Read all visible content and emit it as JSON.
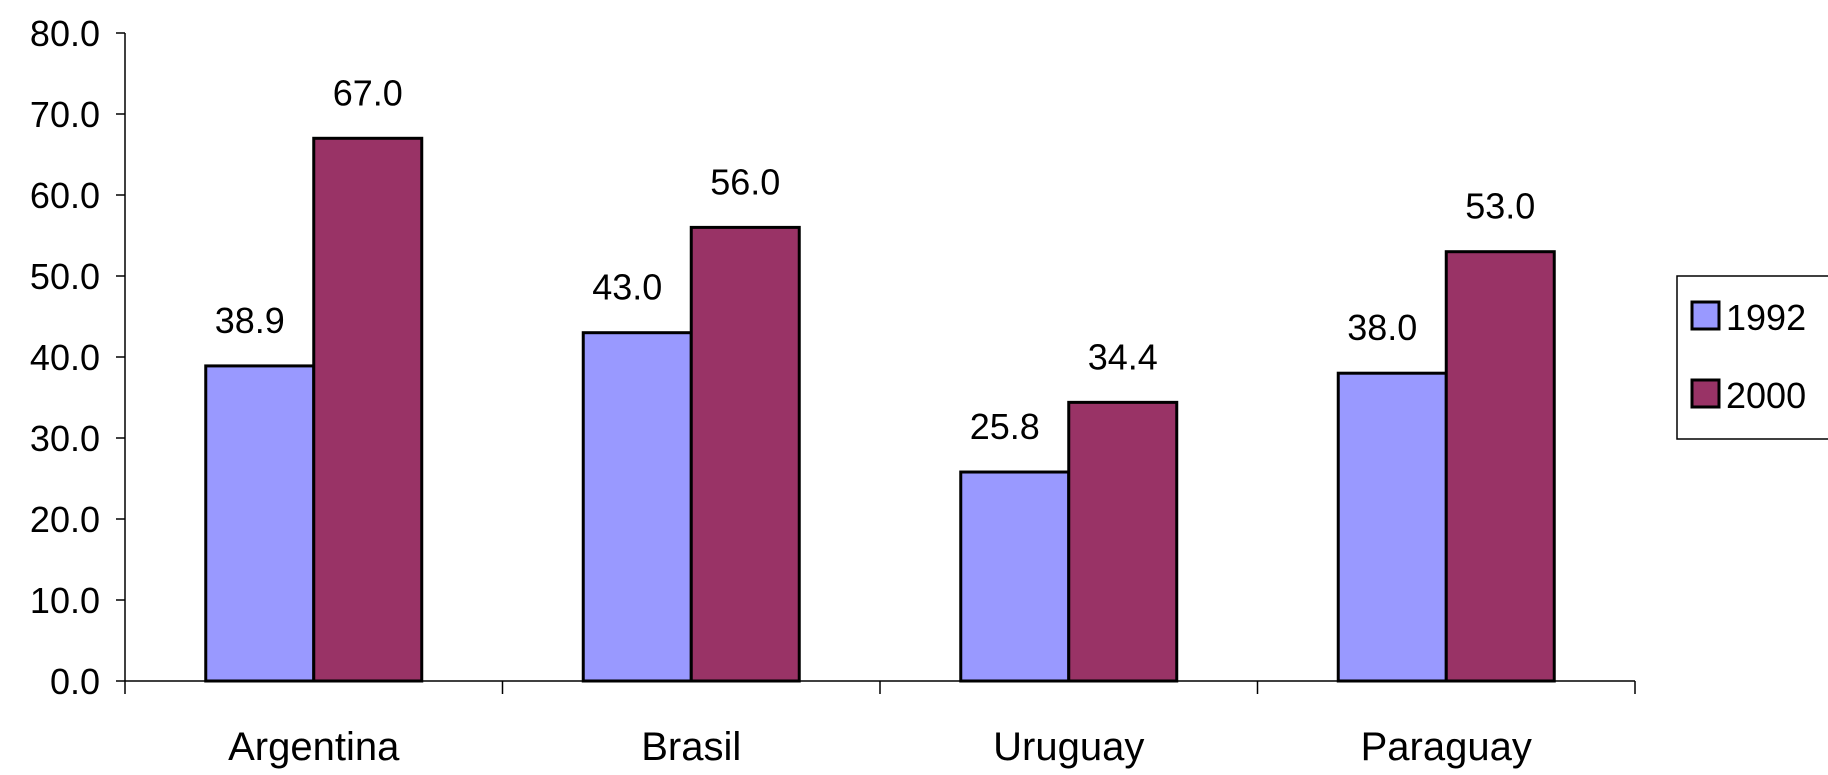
{
  "chart_data": {
    "type": "bar",
    "categories": [
      "Argentina",
      "Brasil",
      "Uruguay",
      "Paraguay"
    ],
    "series": [
      {
        "name": "1992",
        "values": [
          38.9,
          43.0,
          25.8,
          38.0
        ],
        "color": "#9999ff"
      },
      {
        "name": "2000",
        "values": [
          67.0,
          56.0,
          34.4,
          53.0
        ],
        "color": "#993366"
      }
    ],
    "data_labels": [
      [
        "38.9",
        "43.0",
        "25.8",
        "38.0"
      ],
      [
        "67.0",
        "56.0",
        "34.4",
        "53.0"
      ]
    ],
    "yticks": [
      "0.0",
      "10.0",
      "20.0",
      "30.0",
      "40.0",
      "50.0",
      "60.0",
      "70.0",
      "80.0"
    ],
    "ylim": [
      0,
      80
    ],
    "title": "",
    "xlabel": "",
    "ylabel": "",
    "grid": false,
    "legend_position": "right"
  }
}
